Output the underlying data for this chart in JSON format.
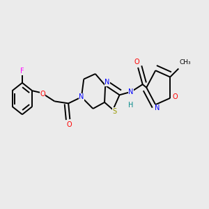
{
  "background_color": "#ebebeb",
  "fig_size": [
    3.0,
    3.0
  ],
  "dpi": 100,
  "atom_colors": {
    "C": "#000000",
    "N": "#0000FF",
    "O": "#FF0000",
    "S": "#999900",
    "F": "#FF00FF",
    "H": "#008888"
  },
  "bond_color": "#000000",
  "bond_lw": 1.4,
  "dbl_off": 0.018,
  "fs": 7.0
}
